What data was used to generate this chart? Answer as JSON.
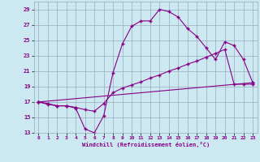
{
  "xlabel": "Windchill (Refroidissement éolien,°C)",
  "xlim": [
    -0.5,
    23.5
  ],
  "ylim": [
    13,
    30
  ],
  "yticks": [
    13,
    15,
    17,
    19,
    21,
    23,
    25,
    27,
    29
  ],
  "xticks": [
    0,
    1,
    2,
    3,
    4,
    5,
    6,
    7,
    8,
    9,
    10,
    11,
    12,
    13,
    14,
    15,
    16,
    17,
    18,
    19,
    20,
    21,
    22,
    23
  ],
  "bg_color": "#cce8f0",
  "grid_color": "#99aabb",
  "line_color": "#880088",
  "line1_x": [
    0,
    1,
    2,
    3,
    4,
    5,
    6,
    7,
    8,
    9,
    10,
    11,
    12,
    13,
    14,
    15,
    16,
    17,
    18,
    19,
    20,
    21,
    22,
    23
  ],
  "line1_y": [
    17.0,
    16.7,
    16.5,
    16.5,
    16.3,
    16.0,
    15.8,
    16.8,
    18.2,
    18.8,
    19.2,
    19.6,
    20.1,
    20.5,
    21.0,
    21.4,
    21.9,
    22.3,
    22.8,
    23.3,
    23.8,
    19.3,
    19.3,
    19.3
  ],
  "line2_x": [
    0,
    1,
    2,
    3,
    4,
    5,
    6,
    7,
    8,
    9,
    10,
    11,
    12,
    13,
    14,
    15,
    16,
    17,
    18,
    19,
    20,
    21,
    22,
    23
  ],
  "line2_y": [
    17.0,
    16.8,
    16.5,
    16.5,
    16.2,
    13.5,
    13.0,
    15.2,
    20.8,
    24.5,
    26.8,
    27.5,
    27.5,
    29.0,
    28.7,
    28.0,
    26.5,
    25.5,
    24.0,
    22.5,
    24.8,
    24.3,
    22.5,
    19.5
  ],
  "line3_x": [
    0,
    23
  ],
  "line3_y": [
    17.0,
    19.5
  ]
}
